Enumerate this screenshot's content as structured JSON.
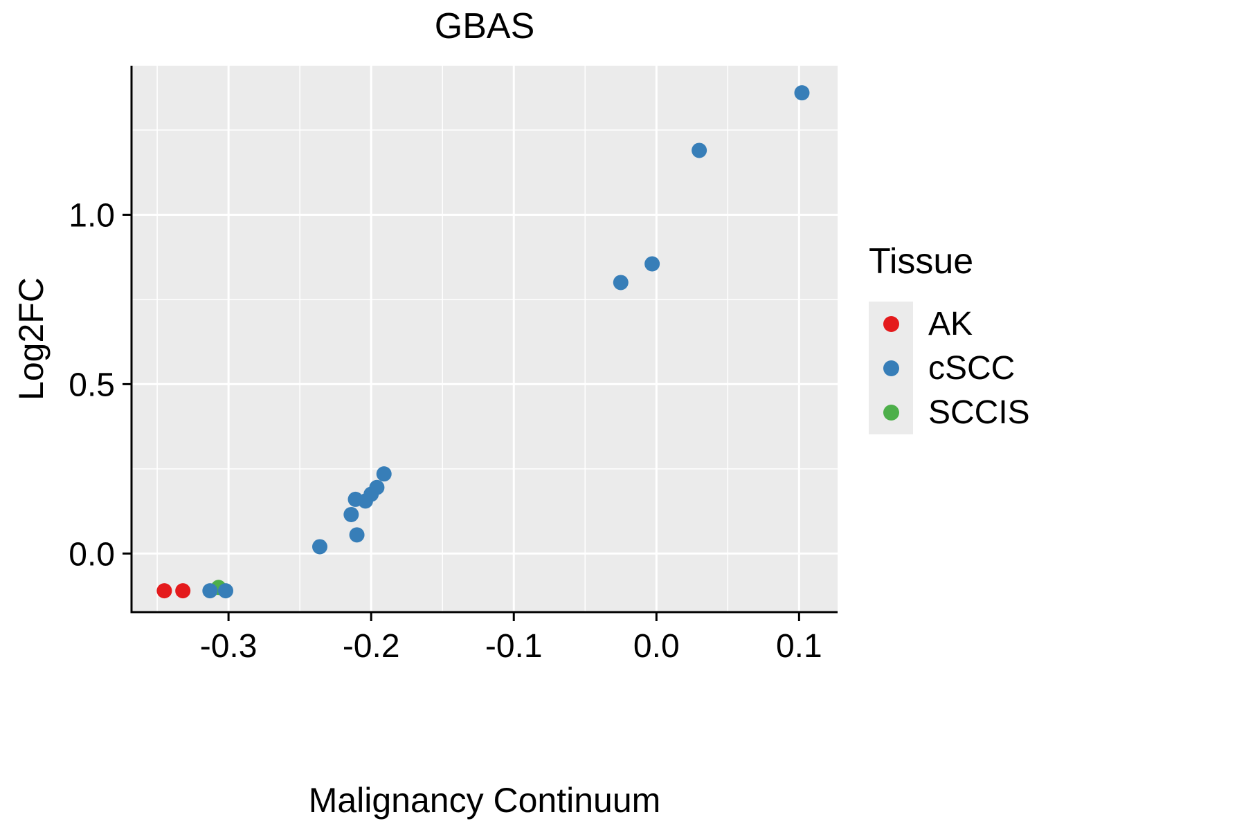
{
  "chart_data": {
    "type": "scatter",
    "title": "GBAS",
    "xlabel": "Malignancy Continuum",
    "ylabel": "Log2FC",
    "xlim": [
      -0.368,
      0.127
    ],
    "ylim": [
      -0.173,
      1.44
    ],
    "x_ticks": [
      -0.3,
      -0.2,
      -0.1,
      0.0,
      0.1
    ],
    "x_tick_labels": [
      "-0.3",
      "-0.2",
      "-0.1",
      "0.0",
      "0.1"
    ],
    "y_ticks": [
      0.0,
      0.5,
      1.0
    ],
    "y_tick_labels": [
      "0.0",
      "0.5",
      "1.0"
    ],
    "x_minor_ticks": [
      -0.35,
      -0.25,
      -0.15,
      -0.05,
      0.05
    ],
    "y_minor_ticks": [
      0.25,
      0.75,
      1.25
    ],
    "grid": true,
    "panel_background": "#EBEBEB",
    "grid_color": "#FFFFFF",
    "axis_color": "#000000",
    "point_radius_px": 11,
    "legend_title": "Tissue",
    "legend_position": "right",
    "legend_order": [
      "AK",
      "cSCC",
      "SCCIS"
    ],
    "series": [
      {
        "name": "SCCIS",
        "color": "#4DAF4A",
        "points": [
          [
            -0.307,
            -0.1
          ]
        ]
      },
      {
        "name": "AK",
        "color": "#E41A1C",
        "points": [
          [
            -0.345,
            -0.11
          ],
          [
            -0.332,
            -0.11
          ]
        ]
      },
      {
        "name": "cSCC",
        "color": "#377EB8",
        "points": [
          [
            -0.313,
            -0.11
          ],
          [
            -0.302,
            -0.11
          ],
          [
            -0.236,
            0.02
          ],
          [
            -0.214,
            0.115
          ],
          [
            -0.211,
            0.16
          ],
          [
            -0.21,
            0.055
          ],
          [
            -0.204,
            0.155
          ],
          [
            -0.2,
            0.175
          ],
          [
            -0.196,
            0.195
          ],
          [
            -0.191,
            0.235
          ],
          [
            -0.025,
            0.8
          ],
          [
            -0.003,
            0.855
          ],
          [
            0.03,
            1.19
          ],
          [
            0.102,
            1.36
          ]
        ]
      }
    ]
  }
}
